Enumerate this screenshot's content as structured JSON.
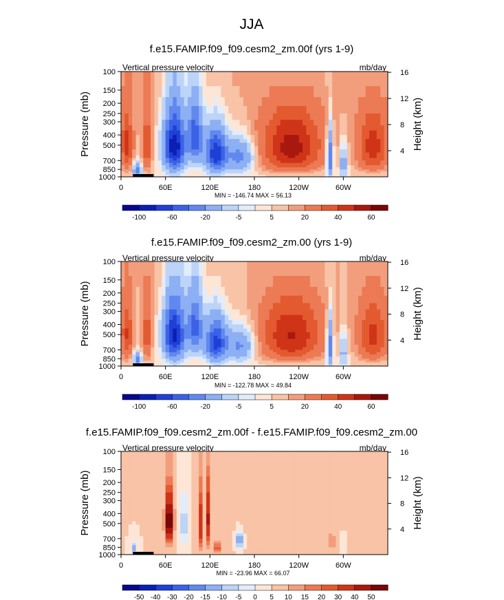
{
  "figure": {
    "title": "JJA"
  },
  "colors": {
    "main": [
      "#08088c",
      "#0a1fb4",
      "#1f3fd6",
      "#3b62e6",
      "#6088ee",
      "#8daff4",
      "#bcd4f8",
      "#e2ecfb",
      "#fde6d6",
      "#f8c3a6",
      "#f29e7d",
      "#ec7a55",
      "#e35a30",
      "#cf3418",
      "#a8180e",
      "#780708"
    ],
    "diff": [
      "#08088c",
      "#0a1fb4",
      "#1f3fd6",
      "#3b62e6",
      "#6088ee",
      "#8daff4",
      "#bcd4f8",
      "#e2ecfb",
      "#fde6d6",
      "#f8c3a6",
      "#f29e7d",
      "#ec7a55",
      "#e35a30",
      "#cf3418",
      "#a8180e",
      "#780708"
    ]
  },
  "chart_data": [
    {
      "type": "contour",
      "title": "f.e15.FAMIP.f09_f09.cesm2_zm.00f (yrs 1-9)",
      "left_label": "Vertical pressure velocity",
      "right_label": "mb/day",
      "ylabel": "Pressure (mb)",
      "ylabel_right": "Height (km)",
      "x_ticks": [
        "0",
        "60E",
        "120E",
        "180",
        "120W",
        "60W"
      ],
      "x_tick_lon": [
        0,
        60,
        120,
        180,
        240,
        300
      ],
      "xlim": [
        0,
        360
      ],
      "p_ticks": [
        "100",
        "150",
        "200",
        "250",
        "300",
        "400",
        "500",
        "700",
        "850",
        "1000"
      ],
      "p_values": [
        100,
        150,
        200,
        250,
        300,
        400,
        500,
        700,
        850,
        1000
      ],
      "ylim": [
        1000,
        100
      ],
      "height_ticks": [
        "4",
        "8",
        "12",
        "16"
      ],
      "height_values": [
        4,
        8,
        12,
        16
      ],
      "stats": "MIN = -146.74  MAX =  56.13",
      "colorbar_labels": [
        "-100",
        "-60",
        "-20",
        "-5",
        "5",
        "20",
        "40",
        "60"
      ],
      "colorbar_ticks": [
        1,
        3,
        5,
        7,
        9,
        11,
        13,
        15
      ],
      "levels": [
        -120,
        -100,
        -80,
        -60,
        -40,
        -20,
        -10,
        -5,
        0,
        5,
        10,
        20,
        30,
        40,
        50,
        60
      ],
      "scheme": "main"
    },
    {
      "type": "contour",
      "title": "f.e15.FAMIP.f09_f09.cesm2_zm.00 (yrs 1-9)",
      "left_label": "Vertical pressure velocity",
      "right_label": "mb/day",
      "ylabel": "Pressure (mb)",
      "ylabel_right": "Height (km)",
      "x_ticks": [
        "0",
        "60E",
        "120E",
        "180",
        "120W",
        "60W"
      ],
      "x_tick_lon": [
        0,
        60,
        120,
        180,
        240,
        300
      ],
      "xlim": [
        0,
        360
      ],
      "p_ticks": [
        "100",
        "150",
        "200",
        "250",
        "300",
        "400",
        "500",
        "700",
        "850",
        "1000"
      ],
      "p_values": [
        100,
        150,
        200,
        250,
        300,
        400,
        500,
        700,
        850,
        1000
      ],
      "ylim": [
        1000,
        100
      ],
      "height_ticks": [
        "4",
        "8",
        "12",
        "16"
      ],
      "height_values": [
        4,
        8,
        12,
        16
      ],
      "stats": "MIN = -122.78  MAX =  49.84",
      "colorbar_labels": [
        "-100",
        "-60",
        "-20",
        "-5",
        "5",
        "20",
        "40",
        "60"
      ],
      "colorbar_ticks": [
        1,
        3,
        5,
        7,
        9,
        11,
        13,
        15
      ],
      "levels": [
        -120,
        -100,
        -80,
        -60,
        -40,
        -20,
        -10,
        -5,
        0,
        5,
        10,
        20,
        30,
        40,
        50,
        60
      ],
      "scheme": "main"
    },
    {
      "type": "contour",
      "title": "f.e15.FAMIP.f09_f09.cesm2_zm.00f - f.e15.FAMIP.f09_f09.cesm2_zm.00",
      "left_label": "Vertical pressure velocity",
      "right_label": "mb/day",
      "ylabel": "Pressure (mb)",
      "ylabel_right": "Height (km)",
      "x_ticks": [
        "0",
        "60E",
        "120E",
        "180",
        "120W",
        "60W"
      ],
      "x_tick_lon": [
        0,
        60,
        120,
        180,
        240,
        300
      ],
      "xlim": [
        0,
        360
      ],
      "p_ticks": [
        "100",
        "150",
        "200",
        "250",
        "300",
        "400",
        "500",
        "700",
        "850",
        "1000"
      ],
      "p_values": [
        100,
        150,
        200,
        250,
        300,
        400,
        500,
        700,
        850,
        1000
      ],
      "ylim": [
        1000,
        100
      ],
      "height_ticks": [
        "4",
        "8",
        "12",
        "16"
      ],
      "height_values": [
        4,
        8,
        12,
        16
      ],
      "stats": "MIN = -23.96  MAX =  66.07",
      "colorbar_labels": [
        "-50",
        "-40",
        "-30",
        "-20",
        "-15",
        "-10",
        "-5",
        "0",
        "5",
        "10",
        "15",
        "20",
        "30",
        "40",
        "50"
      ],
      "colorbar_ticks": [
        1,
        2,
        3,
        4,
        5,
        6,
        7,
        8,
        9,
        10,
        11,
        12,
        13,
        14,
        15
      ],
      "levels": [
        -60,
        -50,
        -40,
        -30,
        -20,
        -15,
        -10,
        -5,
        0,
        5,
        10,
        15,
        20,
        30,
        40,
        50
      ],
      "scheme": "diff"
    }
  ]
}
